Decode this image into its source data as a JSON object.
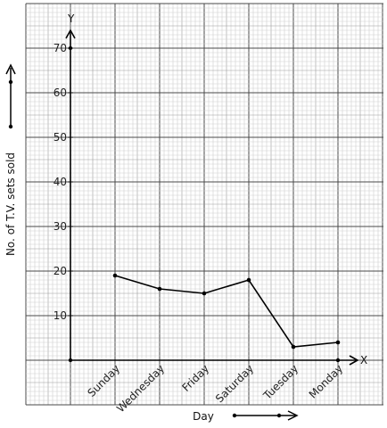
{
  "chart_data": {
    "type": "line",
    "categories": [
      "Sunday",
      "Wednesday",
      "Friday",
      "Saturday",
      "Tuesday",
      "Monday"
    ],
    "values": [
      19,
      16,
      15,
      18,
      3,
      4
    ],
    "xlabel": "Day",
    "ylabel": "No. of T.V. sets sold",
    "x_axis_letter": "X",
    "y_axis_letter": "Y",
    "yticks": [
      10,
      20,
      30,
      40,
      50,
      60,
      70
    ],
    "ylim": [
      0,
      70
    ],
    "grid": true,
    "colors": {
      "grid_minor": "#cfcfcf",
      "grid_major": "#4a4a4a",
      "line": "#000000",
      "paper": "#ffffff"
    }
  }
}
